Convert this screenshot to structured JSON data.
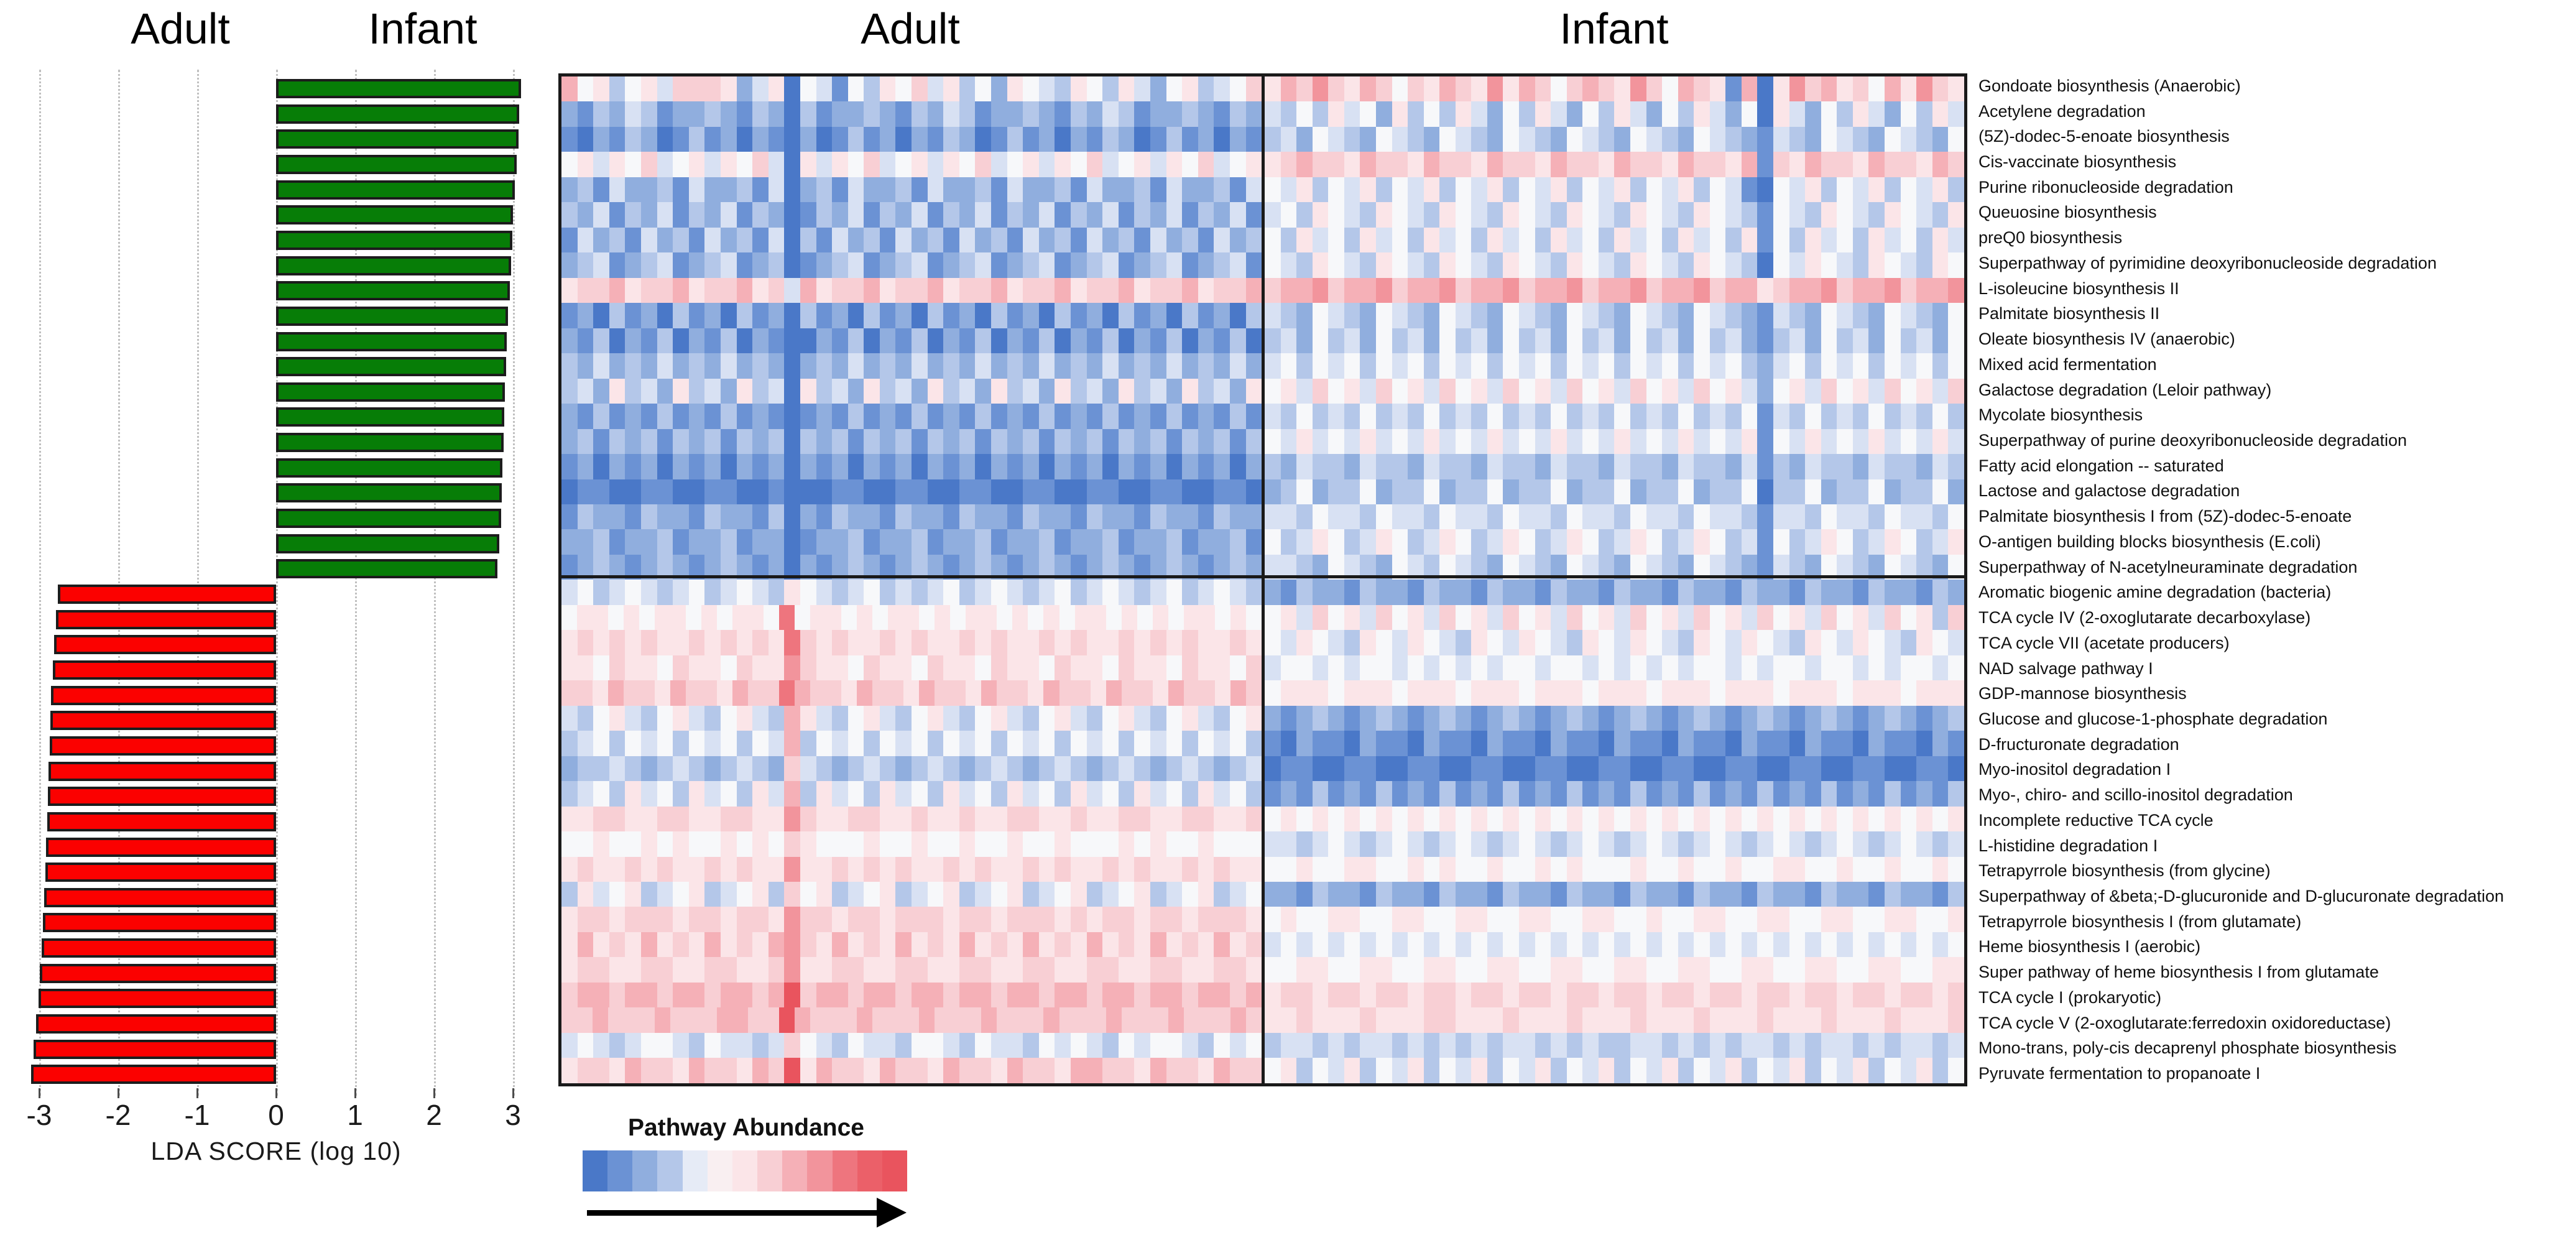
{
  "legend": {
    "title": "Pathway Abundance",
    "colors": [
      "#4a78c8",
      "#6b92d4",
      "#90aede",
      "#b4c7e9",
      "#e6ebf6",
      "#f9eff1",
      "#fbe5e8",
      "#f8cfd4",
      "#f5b0b7",
      "#f2949c",
      "#ee757e",
      "#eb6069",
      "#e9545e"
    ]
  },
  "chart_data": [
    {
      "type": "bar",
      "title_left": "Adult",
      "title_right": "Infant",
      "xlabel": "LDA SCORE (log 10)",
      "xlim": [
        -3.5,
        3.5
      ],
      "ticks": [
        "-3",
        "-2",
        "-1",
        "0",
        "1",
        "2",
        "3"
      ],
      "grid": "dotted-vertical",
      "orientation": "horizontal",
      "note": "bars align with the 40 heatmap rows top-to-bottom; positive green = Infant-enriched, negative red = Adult-enriched",
      "series": [
        {
          "name": "Infant",
          "color": "#077d07",
          "values": [
            3.1,
            3.08,
            3.07,
            3.05,
            3.02,
            3.0,
            2.99,
            2.98,
            2.96,
            2.94,
            2.92,
            2.91,
            2.9,
            2.89,
            2.88,
            2.87,
            2.86,
            2.85,
            2.83,
            2.8
          ]
        },
        {
          "name": "Adult",
          "color": "#fb0100",
          "values": [
            -2.76,
            -2.79,
            -2.81,
            -2.83,
            -2.85,
            -2.86,
            -2.87,
            -2.88,
            -2.89,
            -2.9,
            -2.91,
            -2.92,
            -2.94,
            -2.95,
            -2.97,
            -2.99,
            -3.01,
            -3.04,
            -3.07,
            -3.1
          ]
        }
      ]
    },
    {
      "type": "heatmap",
      "title_left": "Adult",
      "title_right": "Infant",
      "palette": {
        "0": "#4a78c8",
        "1": "#6b92d4",
        "2": "#90aede",
        "3": "#b4c7e9",
        "4": "#d8e1f3",
        "5": "#f7f8fa",
        "6": "#fbe5e8",
        "7": "#f8cfd4",
        "8": "#f5b0b7",
        "9": "#f2949c",
        "A": "#ee757e",
        "B": "#e9545e"
      },
      "rows": [
        {
          "label": "Gondoate biosynthesis (Anaerobic)",
          "group": "infant",
          "adult": "85635647776246054153657463526543653642563457",
          "infant": "68797687576876968757876975876180697867586976"
        },
        {
          "label": "Acetylene degradation",
          "group": "infant",
          "adult": "21324312232132031223213243122321324312232132",
          "infant": "43536452635364253642536425364250642536425364"
        },
        {
          "label": "(5Z)-dodec-5-enoate biosynthesis",
          "group": "infant",
          "adult": "10213201312021020131202132013120213201312021",
          "infant": "34254325432543254325432543254321432543254325"
        },
        {
          "label": "Cis-vaccinate biosynthesis",
          "group": "infant",
          "adult": "56465745646574064657456465745646574564657456",
          "infant": "67877687768776877687768776877681768776877687"
        },
        {
          "label": "Purine ribonucleoside degradation",
          "group": "infant",
          "adult": "23142231422314023142231422314223142231422314",
          "infant": "54635463546354635463546354635410546354635463"
        },
        {
          "label": "Queuosine biosynthesis",
          "group": "infant",
          "adult": "32413241324132013241324132413241324132413241",
          "infant": "45365436543654365436543654365431543654365436"
        },
        {
          "label": "preQ0 biosynthesis",
          "group": "infant",
          "adult": "14231423142314031423142314231423142314231423",
          "infant": "53645364536453645364536453645361536453645364"
        },
        {
          "label": "Superpathway of pyrimidine deoxyribonucleoside degradation",
          "group": "infant",
          "adult": "23412341234123012341234123412341234123412341",
          "infant": "54365436543654365436543654365430546543654365"
        },
        {
          "label": "L-isoleucine biosynthesis II",
          "group": "infant",
          "adult": "67786778677867486778677867786778677867786778",
          "infant": "78897889788978897889788978897886788978897889"
        },
        {
          "label": "Palmitate biosynthesis II",
          "group": "infant",
          "adult": "12031203120312031203120312031203120312031203",
          "infant": "43254325432543254325432543254321432543254325"
        },
        {
          "label": "Oleate biosynthesis IV (anaerobic)",
          "group": "infant",
          "adult": "21302130213021002130213021302130213021302130",
          "infant": "34253425342534253425342534253421342534253425"
        },
        {
          "label": "Mixed acid fermentation",
          "group": "infant",
          "adult": "32423242324232023242324232423242324232423242",
          "infant": "45354535453545354535453545354532453545354535"
        },
        {
          "label": "Galactose degradation (Leloir pathway)",
          "group": "infant",
          "adult": "34263426342634063426342634263426342634263426",
          "infant": "56475647564756475647564756475642564756475647"
        },
        {
          "label": "Mycolate biosynthesis",
          "group": "infant",
          "adult": "21312131213121012131213121312131213121312131",
          "infant": "43534353435343534353435343534351435343534353"
        },
        {
          "label": "Superpathway of purine deoxyribonucleoside degradation",
          "group": "infant",
          "adult": "23132313231323032313231323132313231323132313",
          "infant": "54645464546454645464546454645461546454645464"
        },
        {
          "label": "Fatty acid elongation -- saturated",
          "group": "infant",
          "adult": "12021202120212021202120212021202120212021202",
          "infant": "32433243324332433243324332433241324332433243"
        },
        {
          "label": "Lactose and galactose degradation",
          "group": "infant",
          "adult": "01100110011001000110011001100110011001100110",
          "infant": "23523352335233523352335233523350335233523352"
        },
        {
          "label": "Palmitate biosynthesis I from (5Z)-dodec-5-enoate",
          "group": "infant",
          "adult": "13221322132213021322132213221322132213221322",
          "infant": "44354435443544354435443544354431443544354435"
        },
        {
          "label": "O-antigen building blocks biosynthesis (E.coli)",
          "group": "infant",
          "adult": "22312231223122012231223122312231223122312231",
          "infant": "53465346534653465346534653465341534653465346"
        },
        {
          "label": "Superpathway of N-acetylneuraminate degradation",
          "group": "infant",
          "adult": "12321232123212021232123212321232123212321232",
          "infant": "44325432543543254325432543254321432543254325"
        },
        {
          "label": "Aromatic biogenic amine degradation (bacteria)",
          "group": "adult",
          "adult": "45345434534543654345343453454345345434534543",
          "infant": "21322132213221322132213221322132213221322132"
        },
        {
          "label": "TCA cycle IV (2-oxoglutarate decarboxylase)",
          "group": "adult",
          "adult": "56656566565665A566565665656656565665656566565",
          "infant": "56475647564756475647564756475647564756475637"
        },
        {
          "label": "TCA cycle VII (acetate producers)",
          "group": "adult",
          "adult": "67676766767676A767667676676766767667676766 76",
          "infant": "54654365465436546543654654365465436546543654"
        },
        {
          "label": "NAD salvage pathway I",
          "group": "adult",
          "adult": "66576657665766976657665766576657665766576657",
          "infant": "45545455454545455455454545455454554554545545"
        },
        {
          "label": "GDP-mannose biosynthesis",
          "group": "adult",
          "adult": "77687768776877A877687768776877687768776877687",
          "infant": "56665666566656665666566656665666566656665666"
        },
        {
          "label": "Glucose and glucose-1-phosphate degradation",
          "group": "adult",
          "adult": "43564356435643864356435643564356435643564356",
          "infant": "21232123212321232123212321232123212321232123"
        },
        {
          "label": "D-fructuronate degradation",
          "group": "adult",
          "adult": "34535453545354835453545354535453545354535453",
          "infant": "10211021102110211021102110211021102110211021"
        },
        {
          "label": "Myo-inositol degradation I",
          "group": "adult",
          "adult": "23343234323432743234323432343234323432343234",
          "infant": "01100110011001100110011001100110011001100110"
        },
        {
          "label": "Myo-, chiro- and scillo-inositol degradation",
          "group": "adult",
          "adult": "34536453645364836453645364536453645364536453",
          "infant": "12131213121312131213121312131213121312131213"
        },
        {
          "label": "Incomplete reductive TCA cycle",
          "group": "adult",
          "adult": "66776677667766976677667667667766766776677667",
          "infant": "56565656565656565656565656565656565656565656"
        },
        {
          "label": "L-histidine degradation I",
          "group": "adult",
          "adult": "55655656556565765556556556556556555656556555",
          "infant": "44345434543454345434543454345434543454345434"
        },
        {
          "label": "Tetrapyrrole biosynthesis (from glycine)",
          "group": "adult",
          "adult": "67667676676766966767676676766767667676676766",
          "infant": "55655665565655655656555655655655665565565565"
        },
        {
          "label": "Superpathway of &beta;-D-glucuronide and D-glucuronate degradation",
          "group": "adult",
          "adult": "36456345634563756345634563456345634563456345",
          "infant": "22132213221322132213221322132213221322132213"
        },
        {
          "label": "Tetrapyrrole biosynthesis I (from glutamate)",
          "group": "adult",
          "adult": "67767776776776977677677767767776767767767776",
          "infant": "56556655665566556655665565566556655665566556"
        },
        {
          "label": "Heme biosynthesis I (aerobic)",
          "group": "adult",
          "adult": "68676867686768976867686768676867686768676867",
          "infant": "45454545454545454545454545454545454545454545"
        },
        {
          "label": "Super pathway of heme biosynthesis I from glutamate",
          "group": "adult",
          "adult": "67766776677667966776677667766776677667766776",
          "infant": "55665566556655665566556655665566556655665566"
        },
        {
          "label": "TCA cycle I (prokaryotic)",
          "group": "adult",
          "adult": "78878878878878B788788788788788788788788 78878",
          "infant": "67767767767767767767767767767767767767767767"
        },
        {
          "label": "TCA cycle V (2-oxoglutarate:ferredoxin oxidoreductase)",
          "group": "adult",
          "adult": "77877787778877B877787778777877787778777877787",
          "infant": "66766676667766676667666766676667666766676667"
        },
        {
          "label": "Mono-trans, poly-cis decaprenyl phosphate biosynthesis",
          "group": "adult",
          "adult": "45434554354434754354435543544354543545543545",
          "infant": "34434344343434344343433443434344343443434434"
        },
        {
          "label": "Pyruvate fermentation to propanoate I",
          "group": "adult",
          "adult": "67768776877687B687768776877687768877687768 77",
          "infant": "56354635463546354635463546354635463546354635"
        }
      ]
    }
  ]
}
